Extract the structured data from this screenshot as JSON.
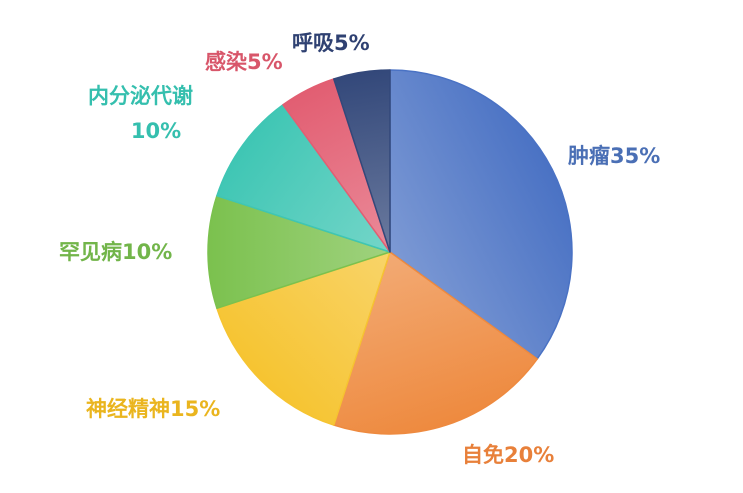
{
  "chart_data": {
    "type": "pie",
    "title": "",
    "start_angle_deg": 0,
    "direction": "clockwise",
    "slices": [
      {
        "label": "肿瘤",
        "value": 35,
        "value_label": "35%",
        "color": "#4a72c4",
        "label_color": "#4a6fb5"
      },
      {
        "label": "自免",
        "value": 20,
        "value_label": "20%",
        "color": "#ee8a3f",
        "label_color": "#e8803a"
      },
      {
        "label": "神经精神",
        "value": 15,
        "value_label": "15%",
        "color": "#f6c431",
        "label_color": "#eab51e"
      },
      {
        "label": "罕见病",
        "value": 10,
        "value_label": "10%",
        "color": "#7bc14e",
        "label_color": "#72b54a"
      },
      {
        "label": "内分泌代谢",
        "value": 10,
        "value_label": "10%",
        "color": "#3fc6b4",
        "label_color": "#35bfae"
      },
      {
        "label": "感染",
        "value": 5,
        "value_label": "5%",
        "color": "#e25e72",
        "label_color": "#d8566a"
      },
      {
        "label": "呼吸",
        "value": 5,
        "value_label": "5%",
        "color": "#33487a",
        "label_color": "#2f4172"
      }
    ]
  }
}
